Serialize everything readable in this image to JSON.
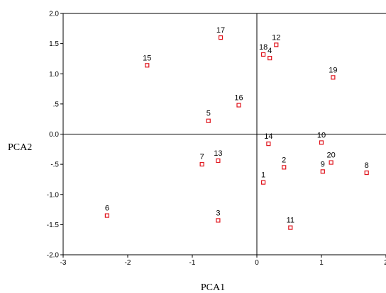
{
  "chart_data": {
    "type": "scatter",
    "title": "",
    "xlabel": "PCA1",
    "ylabel": "PCA2",
    "xlim": [
      -3,
      2
    ],
    "ylim": [
      -2,
      2
    ],
    "xticks": [
      -3,
      -2,
      -1,
      0,
      1,
      2
    ],
    "xtick_labels": [
      "-3",
      "-2",
      "-1",
      "0",
      "1",
      "2"
    ],
    "yticks": [
      2,
      1.5,
      1,
      0.5,
      0,
      -0.5,
      -1,
      -1.5,
      -2
    ],
    "ytick_labels": [
      "2.0",
      "1.5",
      "1.0",
      ".5",
      "0.0",
      "-.5",
      "-1.0",
      "-1.5",
      "-2.0"
    ],
    "grid": false,
    "reference_lines": {
      "x": 0,
      "y": 0
    },
    "marker_color": "#e0141c",
    "points": [
      {
        "label": "1",
        "x": 0.1,
        "y": -0.8
      },
      {
        "label": "2",
        "x": 0.42,
        "y": -0.55
      },
      {
        "label": "3",
        "x": -0.6,
        "y": -1.43
      },
      {
        "label": "4",
        "x": 0.2,
        "y": 1.26
      },
      {
        "label": "5",
        "x": -0.75,
        "y": 0.22
      },
      {
        "label": "6",
        "x": -2.32,
        "y": -1.35
      },
      {
        "label": "7",
        "x": -0.85,
        "y": -0.5
      },
      {
        "label": "8",
        "x": 1.7,
        "y": -0.64
      },
      {
        "label": "9",
        "x": 1.02,
        "y": -0.62
      },
      {
        "label": "10",
        "x": 1.0,
        "y": -0.14
      },
      {
        "label": "11",
        "x": 0.52,
        "y": -1.55
      },
      {
        "label": "12",
        "x": 0.3,
        "y": 1.48
      },
      {
        "label": "13",
        "x": -0.6,
        "y": -0.44
      },
      {
        "label": "14",
        "x": 0.18,
        "y": -0.16
      },
      {
        "label": "15",
        "x": -1.7,
        "y": 1.14
      },
      {
        "label": "16",
        "x": -0.28,
        "y": 0.48
      },
      {
        "label": "17",
        "x": -0.56,
        "y": 1.6
      },
      {
        "label": "18",
        "x": 0.1,
        "y": 1.32
      },
      {
        "label": "19",
        "x": 1.18,
        "y": 0.94
      },
      {
        "label": "20",
        "x": 1.15,
        "y": -0.47
      }
    ]
  }
}
